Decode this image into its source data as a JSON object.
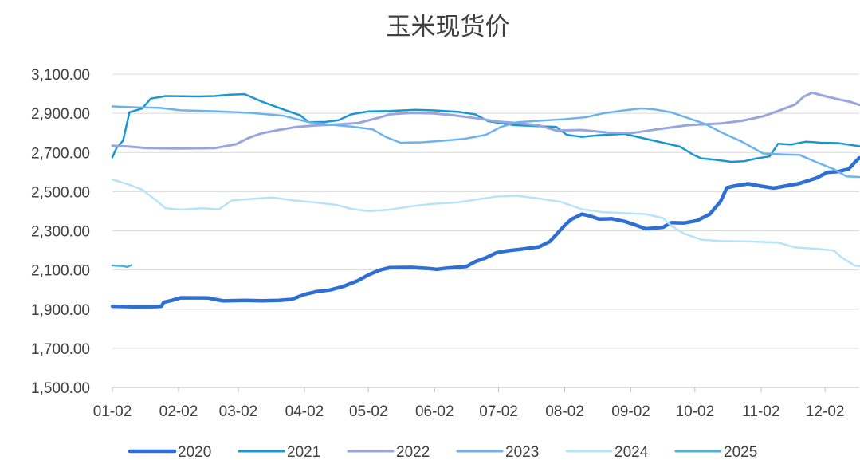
{
  "chart_data": {
    "type": "line",
    "title": "玉米现货价",
    "xlabel": "",
    "ylabel": "",
    "ylim": [
      1500,
      3100
    ],
    "y_ticks": [
      "1,500.00",
      "1,700.00",
      "1,900.00",
      "2,100.00",
      "2,300.00",
      "2,500.00",
      "2,700.00",
      "2,900.00",
      "3,100.00"
    ],
    "x_domain_days": [
      0,
      350
    ],
    "x_ticks": [
      {
        "label": "01-02",
        "day": 0
      },
      {
        "label": "02-02",
        "day": 31
      },
      {
        "label": "03-02",
        "day": 59
      },
      {
        "label": "04-02",
        "day": 90
      },
      {
        "label": "05-02",
        "day": 120
      },
      {
        "label": "06-02",
        "day": 151
      },
      {
        "label": "07-02",
        "day": 181
      },
      {
        "label": "08-02",
        "day": 212
      },
      {
        "label": "09-02",
        "day": 243
      },
      {
        "label": "10-02",
        "day": 273
      },
      {
        "label": "11-02",
        "day": 304
      },
      {
        "label": "12-02",
        "day": 334
      }
    ],
    "legend_position": "bottom",
    "grid": true,
    "series": [
      {
        "name": "2020",
        "color": "#2E6FD4",
        "width": 4.5,
        "points": [
          [
            0,
            1915
          ],
          [
            10,
            1912
          ],
          [
            20,
            1913
          ],
          [
            23,
            1915
          ],
          [
            24,
            1935
          ],
          [
            28,
            1945
          ],
          [
            32,
            1958
          ],
          [
            45,
            1957
          ],
          [
            48,
            1950
          ],
          [
            52,
            1942
          ],
          [
            62,
            1945
          ],
          [
            70,
            1943
          ],
          [
            78,
            1945
          ],
          [
            84,
            1950
          ],
          [
            90,
            1975
          ],
          [
            96,
            1990
          ],
          [
            102,
            1998
          ],
          [
            108,
            2015
          ],
          [
            115,
            2045
          ],
          [
            120,
            2075
          ],
          [
            125,
            2098
          ],
          [
            130,
            2112
          ],
          [
            140,
            2113
          ],
          [
            148,
            2108
          ],
          [
            152,
            2103
          ],
          [
            157,
            2110
          ],
          [
            166,
            2118
          ],
          [
            170,
            2142
          ],
          [
            175,
            2162
          ],
          [
            180,
            2188
          ],
          [
            185,
            2198
          ],
          [
            191,
            2205
          ],
          [
            200,
            2218
          ],
          [
            205,
            2245
          ],
          [
            208,
            2280
          ],
          [
            212,
            2328
          ],
          [
            215,
            2358
          ],
          [
            220,
            2385
          ],
          [
            224,
            2375
          ],
          [
            228,
            2360
          ],
          [
            234,
            2362
          ],
          [
            240,
            2348
          ],
          [
            245,
            2330
          ],
          [
            250,
            2310
          ],
          [
            258,
            2318
          ],
          [
            262,
            2342
          ],
          [
            268,
            2340
          ],
          [
            274,
            2352
          ],
          [
            280,
            2385
          ],
          [
            285,
            2450
          ],
          [
            288,
            2520
          ],
          [
            292,
            2530
          ],
          [
            298,
            2540
          ],
          [
            304,
            2528
          ],
          [
            310,
            2518
          ],
          [
            316,
            2530
          ],
          [
            322,
            2542
          ],
          [
            330,
            2570
          ],
          [
            335,
            2598
          ],
          [
            340,
            2602
          ],
          [
            345,
            2615
          ],
          [
            350,
            2672
          ]
        ]
      },
      {
        "name": "2021",
        "color": "#1A96D0",
        "width": 2.5,
        "points": [
          [
            0,
            2675
          ],
          [
            2,
            2725
          ],
          [
            5,
            2760
          ],
          [
            8,
            2905
          ],
          [
            14,
            2925
          ],
          [
            18,
            2975
          ],
          [
            25,
            2988
          ],
          [
            40,
            2986
          ],
          [
            48,
            2988
          ],
          [
            55,
            2995
          ],
          [
            62,
            2998
          ],
          [
            70,
            2960
          ],
          [
            80,
            2920
          ],
          [
            88,
            2890
          ],
          [
            92,
            2855
          ],
          [
            100,
            2856
          ],
          [
            106,
            2865
          ],
          [
            112,
            2895
          ],
          [
            120,
            2910
          ],
          [
            130,
            2912
          ],
          [
            142,
            2918
          ],
          [
            150,
            2915
          ],
          [
            162,
            2908
          ],
          [
            170,
            2895
          ],
          [
            176,
            2860
          ],
          [
            188,
            2840
          ],
          [
            208,
            2830
          ],
          [
            213,
            2790
          ],
          [
            220,
            2780
          ],
          [
            228,
            2788
          ],
          [
            240,
            2795
          ],
          [
            250,
            2770
          ],
          [
            258,
            2750
          ],
          [
            266,
            2730
          ],
          [
            272,
            2690
          ],
          [
            276,
            2670
          ],
          [
            282,
            2663
          ],
          [
            290,
            2652
          ],
          [
            296,
            2655
          ],
          [
            302,
            2670
          ],
          [
            308,
            2680
          ],
          [
            312,
            2745
          ],
          [
            318,
            2740
          ],
          [
            325,
            2755
          ],
          [
            332,
            2750
          ],
          [
            340,
            2748
          ],
          [
            345,
            2740
          ],
          [
            350,
            2732
          ]
        ]
      },
      {
        "name": "2022",
        "color": "#97A6DE",
        "width": 3,
        "points": [
          [
            0,
            2735
          ],
          [
            8,
            2730
          ],
          [
            16,
            2722
          ],
          [
            30,
            2720
          ],
          [
            48,
            2722
          ],
          [
            58,
            2742
          ],
          [
            64,
            2775
          ],
          [
            70,
            2798
          ],
          [
            78,
            2815
          ],
          [
            86,
            2830
          ],
          [
            95,
            2838
          ],
          [
            105,
            2843
          ],
          [
            115,
            2850
          ],
          [
            125,
            2878
          ],
          [
            130,
            2895
          ],
          [
            140,
            2902
          ],
          [
            150,
            2900
          ],
          [
            160,
            2890
          ],
          [
            172,
            2873
          ],
          [
            180,
            2858
          ],
          [
            190,
            2850
          ],
          [
            200,
            2838
          ],
          [
            208,
            2812
          ],
          [
            220,
            2815
          ],
          [
            232,
            2802
          ],
          [
            244,
            2800
          ],
          [
            255,
            2818
          ],
          [
            270,
            2840
          ],
          [
            285,
            2848
          ],
          [
            295,
            2862
          ],
          [
            305,
            2885
          ],
          [
            312,
            2912
          ],
          [
            320,
            2945
          ],
          [
            324,
            2985
          ],
          [
            328,
            3005
          ],
          [
            333,
            2990
          ],
          [
            340,
            2972
          ],
          [
            346,
            2958
          ],
          [
            350,
            2943
          ]
        ]
      },
      {
        "name": "2023",
        "color": "#6CB3EE",
        "width": 2.5,
        "points": [
          [
            0,
            2935
          ],
          [
            12,
            2930
          ],
          [
            22,
            2928
          ],
          [
            32,
            2915
          ],
          [
            50,
            2910
          ],
          [
            65,
            2902
          ],
          [
            80,
            2888
          ],
          [
            92,
            2855
          ],
          [
            102,
            2842
          ],
          [
            112,
            2832
          ],
          [
            122,
            2818
          ],
          [
            128,
            2780
          ],
          [
            135,
            2750
          ],
          [
            145,
            2752
          ],
          [
            155,
            2760
          ],
          [
            165,
            2770
          ],
          [
            175,
            2790
          ],
          [
            182,
            2830
          ],
          [
            190,
            2855
          ],
          [
            200,
            2862
          ],
          [
            212,
            2870
          ],
          [
            222,
            2880
          ],
          [
            230,
            2900
          ],
          [
            240,
            2915
          ],
          [
            248,
            2925
          ],
          [
            254,
            2920
          ],
          [
            262,
            2905
          ],
          [
            270,
            2875
          ],
          [
            278,
            2845
          ],
          [
            285,
            2805
          ],
          [
            295,
            2755
          ],
          [
            300,
            2725
          ],
          [
            305,
            2695
          ],
          [
            315,
            2690
          ],
          [
            322,
            2688
          ],
          [
            330,
            2650
          ],
          [
            338,
            2615
          ],
          [
            344,
            2578
          ],
          [
            350,
            2575
          ]
        ]
      },
      {
        "name": "2024",
        "color": "#B6E3FA",
        "width": 2.5,
        "points": [
          [
            0,
            2562
          ],
          [
            8,
            2535
          ],
          [
            14,
            2510
          ],
          [
            20,
            2460
          ],
          [
            25,
            2415
          ],
          [
            32,
            2408
          ],
          [
            42,
            2415
          ],
          [
            50,
            2410
          ],
          [
            56,
            2455
          ],
          [
            64,
            2462
          ],
          [
            75,
            2470
          ],
          [
            85,
            2455
          ],
          [
            95,
            2445
          ],
          [
            105,
            2432
          ],
          [
            112,
            2412
          ],
          [
            120,
            2400
          ],
          [
            130,
            2408
          ],
          [
            140,
            2425
          ],
          [
            150,
            2437
          ],
          [
            162,
            2445
          ],
          [
            172,
            2462
          ],
          [
            180,
            2475
          ],
          [
            190,
            2478
          ],
          [
            200,
            2465
          ],
          [
            210,
            2448
          ],
          [
            220,
            2410
          ],
          [
            230,
            2395
          ],
          [
            240,
            2390
          ],
          [
            250,
            2385
          ],
          [
            258,
            2365
          ],
          [
            262,
            2325
          ],
          [
            268,
            2285
          ],
          [
            276,
            2255
          ],
          [
            285,
            2248
          ],
          [
            300,
            2245
          ],
          [
            312,
            2240
          ],
          [
            320,
            2215
          ],
          [
            330,
            2208
          ],
          [
            338,
            2200
          ],
          [
            342,
            2162
          ],
          [
            348,
            2122
          ],
          [
            350,
            2120
          ]
        ]
      },
      {
        "name": "2025",
        "color": "#4FB1D6",
        "width": 2.5,
        "points": [
          [
            0,
            2123
          ],
          [
            5,
            2120
          ],
          [
            7,
            2115
          ],
          [
            9,
            2125
          ]
        ]
      }
    ]
  }
}
